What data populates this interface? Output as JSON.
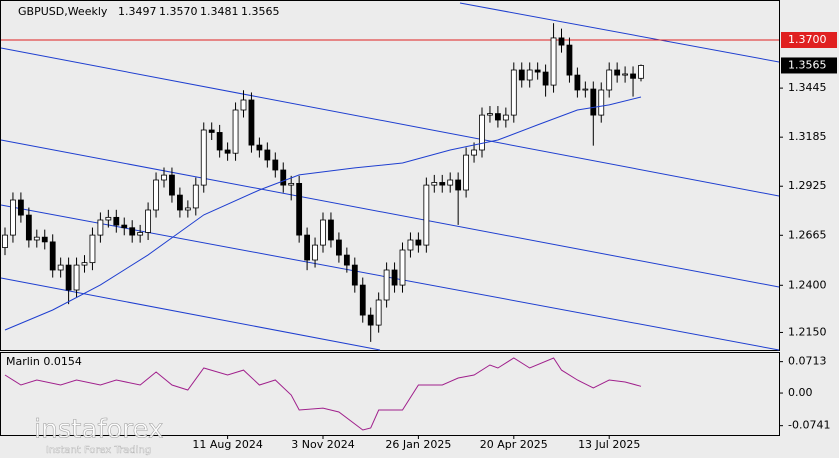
{
  "chart_data": {
    "type": "candlestick",
    "title": "GBPUSD,Weekly",
    "info_labels": [
      "1.3497",
      "1.3570",
      "1.3481",
      "1.3565"
    ],
    "categories": [
      null,
      null,
      null,
      null,
      null,
      null,
      null,
      null,
      null,
      null,
      null,
      null,
      null,
      null,
      null,
      null,
      null,
      null,
      null,
      null,
      null,
      null,
      null,
      null,
      null,
      null,
      null,
      null,
      "11 Aug 2024",
      null,
      null,
      null,
      null,
      null,
      null,
      null,
      null,
      null,
      null,
      null,
      "3 Nov 2024",
      null,
      null,
      null,
      null,
      null,
      null,
      null,
      null,
      null,
      null,
      null,
      "26 Jan 2025",
      null,
      null,
      null,
      null,
      null,
      null,
      null,
      null,
      null,
      null,
      null,
      "20 Apr 2025",
      null,
      null,
      null,
      null,
      null,
      null,
      null,
      null,
      null,
      null,
      null,
      "13 Jul 2025",
      null,
      null,
      null,
      null
    ],
    "open": [
      1.26,
      1.2666,
      1.2852,
      1.2772,
      1.264,
      1.2655,
      1.263,
      1.2481,
      1.2507,
      1.2375,
      1.2507,
      1.252,
      1.2666,
      1.2746,
      1.276,
      1.2719,
      1.2705,
      1.2666,
      1.268,
      1.2799,
      1.2958,
      1.2984,
      1.2878,
      1.2799,
      1.281,
      1.2931,
      1.3223,
      1.321,
      1.3117,
      1.31,
      1.3329,
      1.3382,
      1.3143,
      1.3117,
      1.3064,
      1.3011,
      1.2931,
      1.294,
      1.2666,
      1.2534,
      1.2613,
      1.2746,
      1.264,
      1.256,
      1.2507,
      1.2401,
      1.2242,
      1.2189,
      1.2322,
      1.2481,
      1.2401,
      1.2587,
      1.264,
      1.2613,
      1.2931,
      1.2945,
      1.2931,
      1.2958,
      1.2905,
      1.309,
      1.3117,
      1.3302,
      1.331,
      1.3276,
      1.3302,
      1.3541,
      1.3488,
      1.3541,
      1.353,
      1.3461,
      1.3711,
      1.3673,
      1.3514,
      1.3435,
      1.344,
      1.3302,
      1.3435,
      1.3541,
      1.3514,
      1.352,
      1.3497
    ],
    "high": [
      1.2706,
      1.2892,
      1.2892,
      1.2812,
      1.2695,
      1.2695,
      1.267,
      1.2547,
      1.2547,
      1.2547,
      1.256,
      1.2706,
      1.2786,
      1.28,
      1.28,
      1.2759,
      1.2745,
      1.272,
      1.2839,
      1.2998,
      1.3024,
      1.3024,
      1.2918,
      1.285,
      1.2971,
      1.3263,
      1.3263,
      1.325,
      1.3157,
      1.3369,
      1.3434,
      1.3422,
      1.3183,
      1.3157,
      1.3104,
      1.3051,
      1.298,
      1.298,
      1.2706,
      1.2653,
      1.2786,
      1.2786,
      1.268,
      1.26,
      1.2547,
      1.2441,
      1.2282,
      1.2362,
      1.2521,
      1.2521,
      1.2627,
      1.268,
      1.268,
      1.2971,
      1.2985,
      1.2985,
      1.2998,
      1.2998,
      1.313,
      1.3157,
      1.3342,
      1.335,
      1.335,
      1.3342,
      1.3581,
      1.3581,
      1.3581,
      1.3581,
      1.357,
      1.3789,
      1.376,
      1.3713,
      1.3554,
      1.348,
      1.348,
      1.3475,
      1.3581,
      1.3581,
      1.356,
      1.356,
      1.357
    ],
    "low": [
      1.256,
      1.2626,
      1.2732,
      1.26,
      1.26,
      1.259,
      1.2441,
      1.2441,
      1.23,
      1.2335,
      1.2467,
      1.248,
      1.2626,
      1.2706,
      1.2679,
      1.2665,
      1.2626,
      1.2626,
      1.264,
      1.2759,
      1.2918,
      1.2838,
      1.2759,
      1.2759,
      1.277,
      1.2891,
      1.317,
      1.3077,
      1.306,
      1.306,
      1.3289,
      1.3103,
      1.3077,
      1.3024,
      1.2971,
      1.2891,
      1.285,
      1.2626,
      1.248,
      1.2494,
      1.2573,
      1.26,
      1.252,
      1.2467,
      1.2361,
      1.2202,
      1.21,
      1.2149,
      1.2282,
      1.2361,
      1.2361,
      1.2547,
      1.2573,
      1.2573,
      1.2891,
      1.2891,
      1.2891,
      1.272,
      1.2865,
      1.305,
      1.3077,
      1.3262,
      1.3236,
      1.3236,
      1.3262,
      1.3448,
      1.3448,
      1.349,
      1.34,
      1.3421,
      1.3633,
      1.3474,
      1.3395,
      1.3395,
      1.314,
      1.3262,
      1.3395,
      1.3474,
      1.3474,
      1.34,
      1.3481
    ],
    "close": [
      1.2666,
      1.2852,
      1.2772,
      1.264,
      1.2655,
      1.263,
      1.2481,
      1.2507,
      1.2375,
      1.2507,
      1.252,
      1.2666,
      1.2746,
      1.276,
      1.2719,
      1.2705,
      1.2666,
      1.268,
      1.2799,
      1.2958,
      1.2984,
      1.2878,
      1.2799,
      1.281,
      1.2931,
      1.3223,
      1.321,
      1.3117,
      1.31,
      1.3329,
      1.3382,
      1.3143,
      1.3117,
      1.3064,
      1.3011,
      1.2931,
      1.294,
      1.2666,
      1.2534,
      1.2613,
      1.2746,
      1.264,
      1.256,
      1.2507,
      1.2401,
      1.2242,
      1.2189,
      1.2322,
      1.2481,
      1.2401,
      1.2587,
      1.264,
      1.2613,
      1.2931,
      1.2945,
      1.2931,
      1.2958,
      1.2905,
      1.309,
      1.3117,
      1.3302,
      1.331,
      1.3276,
      1.3302,
      1.3541,
      1.3488,
      1.3541,
      1.353,
      1.3461,
      1.3711,
      1.3673,
      1.3514,
      1.3435,
      1.344,
      1.3302,
      1.3435,
      1.3541,
      1.3514,
      1.352,
      1.3497,
      1.3565
    ],
    "ylim": [
      1.2057,
      1.3912
    ],
    "yticks": [
      1.3445,
      1.3185,
      1.2925,
      1.2665,
      {
        "value": 1.24,
        "label": "1.2400"
      },
      {
        "value": 1.215,
        "label": "1.2150"
      }
    ],
    "hline": {
      "value": 1.37,
      "label": "1.3700",
      "color": "#e02020"
    },
    "ma": {
      "color": "#1f3fd0",
      "x": [
        0,
        6,
        12,
        18,
        25,
        32,
        37,
        44,
        50,
        56,
        62,
        67,
        72,
        76,
        80
      ],
      "values": [
        1.2163,
        1.2269,
        1.2402,
        1.2561,
        1.2773,
        1.2905,
        1.2985,
        1.3022,
        1.3048,
        1.3117,
        1.317,
        1.325,
        1.3329,
        1.3356,
        1.3398
      ]
    },
    "indicator": {
      "label": "Marlin 0.0154",
      "color": "#a0208c",
      "x": [
        0,
        2,
        4,
        7,
        9,
        12,
        14,
        17,
        19,
        21,
        23,
        25,
        28,
        30,
        32,
        34,
        36,
        37,
        40,
        42,
        45,
        46,
        47,
        50,
        52,
        55,
        57,
        59,
        61,
        62,
        64,
        66,
        69,
        70,
        72,
        74,
        76,
        78,
        80
      ],
      "values": [
        0.0409,
        0.0182,
        0.0295,
        0.0182,
        0.0295,
        0.0182,
        0.0295,
        0.0182,
        0.0477,
        0.0182,
        0.0068,
        0.0568,
        0.0409,
        0.0522,
        0.0182,
        0.0295,
        -0.0045,
        -0.0386,
        -0.0341,
        -0.0431,
        -0.084,
        -0.0795,
        -0.0386,
        -0.0386,
        0.0182,
        0.0182,
        0.0341,
        0.0409,
        0.0636,
        0.0568,
        0.0795,
        0.0568,
        0.0795,
        0.0522,
        0.0295,
        0.0114,
        0.0295,
        0.025,
        0.0154
      ],
      "ylim": [
        -0.0953,
        0.0932
      ],
      "yticks": [
        0.0713,
        {
          "value": 0,
          "label": "0.00"
        },
        -0.0741
      ]
    },
    "watermark": {
      "brand": "instaforex",
      "tagline": "Instant Forex Trading"
    }
  }
}
